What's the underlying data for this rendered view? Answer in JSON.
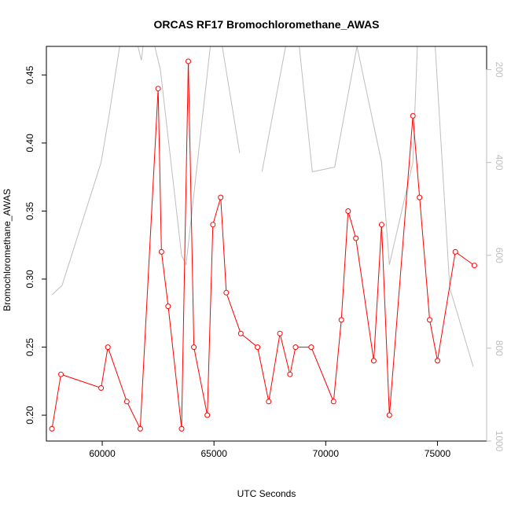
{
  "chart_data": {
    "type": "line",
    "title": "ORCAS RF17 Bromochloromethane_AWAS",
    "xlabel": "UTC Seconds",
    "ylabel": "Bromochloromethane_AWAS",
    "xlim": [
      57500,
      77200
    ],
    "ylim": [
      0.181,
      0.471
    ],
    "y2lim": [
      1000,
      150
    ],
    "y2_reversed": true,
    "x_ticks": [
      60000,
      65000,
      70000,
      75000
    ],
    "y_ticks": [
      0.2,
      0.25,
      0.3,
      0.35,
      0.4,
      0.45
    ],
    "y2_ticks": [
      200,
      400,
      600,
      800,
      1000
    ],
    "series": [
      {
        "role": "primary",
        "color": "#ff0000",
        "markers": true,
        "x": [
          57750,
          58150,
          59950,
          60250,
          61100,
          61700,
          62500,
          62650,
          62950,
          63550,
          63850,
          64100,
          64700,
          64950,
          65300,
          65550,
          66200,
          66950,
          67450,
          67950,
          68400,
          68650,
          69350,
          70350,
          70700,
          71000,
          71350,
          72150,
          72500,
          72850,
          73900,
          74200,
          74650,
          75000,
          75800,
          76650
        ],
        "y": [
          0.19,
          0.23,
          0.22,
          0.25,
          0.21,
          0.19,
          0.44,
          0.32,
          0.28,
          0.19,
          0.46,
          0.25,
          0.2,
          0.34,
          0.36,
          0.29,
          0.26,
          0.25,
          0.21,
          0.26,
          0.23,
          0.25,
          0.25,
          0.21,
          0.27,
          0.35,
          0.33,
          0.24,
          0.34,
          0.2,
          0.42,
          0.36,
          0.27,
          0.24,
          0.32,
          0.31
        ]
      },
      {
        "role": "secondary",
        "color": "#bebebe",
        "markers": false,
        "x": [
          57750,
          58200,
          59950,
          60300,
          61100,
          61750,
          62000,
          62600,
          63550,
          63750,
          64950,
          65200,
          66150,
          67150,
          68600,
          69400,
          70400,
          71400,
          72500,
          72850,
          73900,
          74100,
          74900,
          75550,
          76600
        ],
        "y": [
          685,
          665,
          400,
          300,
          50,
          180,
          80,
          200,
          600,
          620,
          100,
          100,
          380,
          420,
          50,
          420,
          410,
          150,
          400,
          620,
          400,
          150,
          150,
          670,
          840
        ],
        "segments": [
          [
            0,
            13
          ],
          [
            13,
            25
          ]
        ]
      }
    ]
  }
}
